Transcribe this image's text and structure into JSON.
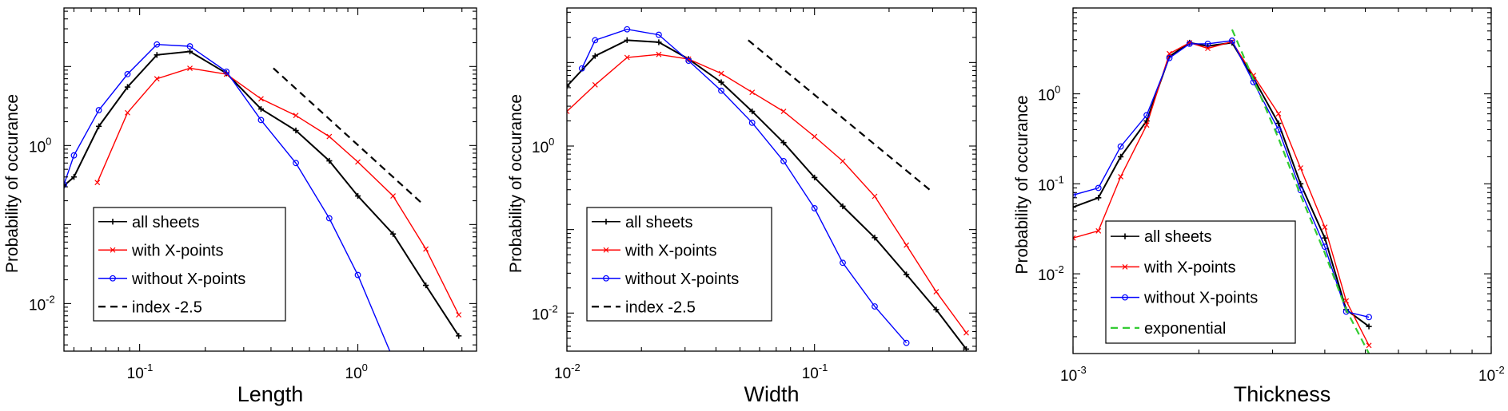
{
  "chart_data": [
    {
      "type": "line",
      "xscale": "log",
      "yscale": "log",
      "xlabel": "Length",
      "ylabel": "Probability of occurance",
      "xlim": [
        0.045,
        3.5
      ],
      "ylim": [
        0.0025,
        55
      ],
      "xticks": [
        {
          "value": 0.1,
          "base": "10",
          "exp": "-1"
        },
        {
          "value": 1,
          "base": "10",
          "exp": "0"
        }
      ],
      "yticks": [
        {
          "value": 0.01,
          "base": "10",
          "exp": "-2"
        },
        {
          "value": 1,
          "base": "10",
          "exp": "0"
        }
      ],
      "legend_position": "bottom-left",
      "series": [
        {
          "name": "all sheets",
          "color": "#000000",
          "marker": "plus",
          "x": [
            0.045,
            0.05,
            0.065,
            0.088,
            0.12,
            0.17,
            0.25,
            0.36,
            0.52,
            0.74,
            1.0,
            1.45,
            2.05,
            2.9
          ],
          "y": [
            0.31,
            0.4,
            1.75,
            5.5,
            14,
            15.5,
            8.2,
            2.9,
            1.55,
            0.64,
            0.23,
            0.076,
            0.017,
            0.0039
          ]
        },
        {
          "name": "with X-points",
          "color": "#ff0000",
          "marker": "x",
          "x": [
            0.064,
            0.088,
            0.12,
            0.17,
            0.25,
            0.36,
            0.52,
            0.74,
            1.0,
            1.45,
            2.05,
            2.9
          ],
          "y": [
            0.34,
            2.6,
            7.0,
            9.5,
            8.0,
            3.9,
            2.4,
            1.3,
            0.62,
            0.23,
            0.049,
            0.0072
          ]
        },
        {
          "name": "without X-points",
          "color": "#0000ff",
          "marker": "circle",
          "x": [
            0.045,
            0.05,
            0.065,
            0.088,
            0.12,
            0.17,
            0.25,
            0.36,
            0.52,
            0.74,
            1.0,
            1.45
          ],
          "y": [
            0.32,
            0.75,
            2.8,
            8.0,
            19,
            18,
            8.6,
            2.1,
            0.6,
            0.12,
            0.023,
            0.002
          ]
        },
        {
          "name": "index -2.5",
          "color": "#000000",
          "marker": "none",
          "dashed": true,
          "x": [
            0.41,
            1.95
          ],
          "y": [
            9.5,
            0.19
          ]
        }
      ]
    },
    {
      "type": "line",
      "xscale": "log",
      "yscale": "log",
      "xlabel": "Width",
      "ylabel": "Probability of occurance",
      "xlim": [
        0.01,
        0.45
      ],
      "ylim": [
        0.0035,
        45
      ],
      "xticks": [
        {
          "value": 0.01,
          "base": "10",
          "exp": "-2"
        },
        {
          "value": 0.1,
          "base": "10",
          "exp": "-1"
        }
      ],
      "yticks": [
        {
          "value": 0.01,
          "base": "10",
          "exp": "-2"
        },
        {
          "value": 1,
          "base": "10",
          "exp": "0"
        }
      ],
      "legend_position": "bottom-left",
      "series": [
        {
          "name": "all sheets",
          "color": "#000000",
          "marker": "plus",
          "x": [
            0.01,
            0.013,
            0.0175,
            0.0235,
            0.031,
            0.042,
            0.056,
            0.075,
            0.1,
            0.13,
            0.175,
            0.235,
            0.31,
            0.41
          ],
          "y": [
            5.2,
            12,
            18.5,
            17.5,
            11,
            5.8,
            2.6,
            1.1,
            0.42,
            0.19,
            0.08,
            0.029,
            0.011,
            0.0037
          ]
        },
        {
          "name": "with X-points",
          "color": "#ff0000",
          "marker": "x",
          "x": [
            0.01,
            0.013,
            0.0175,
            0.0235,
            0.031,
            0.042,
            0.056,
            0.075,
            0.1,
            0.13,
            0.175,
            0.235,
            0.31,
            0.41
          ],
          "y": [
            2.6,
            5.4,
            11.5,
            12.5,
            11,
            7.4,
            4.4,
            2.6,
            1.3,
            0.66,
            0.25,
            0.065,
            0.018,
            0.0058
          ]
        },
        {
          "name": "without X-points",
          "color": "#0000ff",
          "marker": "circle",
          "x": [
            0.0115,
            0.013,
            0.0175,
            0.0235,
            0.031,
            0.042,
            0.056,
            0.075,
            0.1,
            0.13,
            0.175,
            0.235
          ],
          "y": [
            8.5,
            18.5,
            25,
            21.5,
            10.5,
            4.6,
            1.9,
            0.66,
            0.18,
            0.04,
            0.012,
            0.0044
          ]
        },
        {
          "name": "index -2.5",
          "color": "#000000",
          "marker": "none",
          "dashed": true,
          "x": [
            0.054,
            0.3
          ],
          "y": [
            18.5,
            0.28
          ]
        }
      ]
    },
    {
      "type": "line",
      "xscale": "log",
      "yscale": "log",
      "xlabel": "Thickness",
      "ylabel": "Probability of occurance",
      "xlim": [
        0.001,
        0.01
      ],
      "ylim": [
        0.0013,
        9
      ],
      "xticks": [
        {
          "value": 0.001,
          "base": "10",
          "exp": "-3"
        },
        {
          "value": 0.01,
          "base": "10",
          "exp": "-2"
        }
      ],
      "yticks": [
        {
          "value": 0.01,
          "base": "10",
          "exp": "-2"
        },
        {
          "value": 0.1,
          "base": "10",
          "exp": "-1"
        },
        {
          "value": 1,
          "base": "10",
          "exp": "0"
        }
      ],
      "legend_position": "bottom-left",
      "series": [
        {
          "name": "all sheets",
          "color": "#000000",
          "marker": "plus",
          "x": [
            0.001,
            0.00115,
            0.0013,
            0.0015,
            0.0017,
            0.0019,
            0.0021,
            0.0024,
            0.0027,
            0.0031,
            0.0035,
            0.004,
            0.0045,
            0.0051
          ],
          "y": [
            0.055,
            0.07,
            0.2,
            0.5,
            2.6,
            3.7,
            3.4,
            3.7,
            1.5,
            0.47,
            0.1,
            0.025,
            0.004,
            0.0026
          ]
        },
        {
          "name": "with X-points",
          "color": "#ff0000",
          "marker": "x",
          "x": [
            0.001,
            0.00115,
            0.0013,
            0.0015,
            0.0017,
            0.0019,
            0.0021,
            0.0024,
            0.0027,
            0.0031,
            0.0035,
            0.004,
            0.0045,
            0.0051
          ],
          "y": [
            0.025,
            0.03,
            0.12,
            0.45,
            2.8,
            3.7,
            3.2,
            3.8,
            1.6,
            0.6,
            0.15,
            0.033,
            0.005,
            0.0016
          ]
        },
        {
          "name": "without X-points",
          "color": "#0000ff",
          "marker": "circle",
          "x": [
            0.001,
            0.00115,
            0.0013,
            0.0015,
            0.0017,
            0.0019,
            0.0021,
            0.0024,
            0.0027,
            0.0031,
            0.0035,
            0.004,
            0.0045,
            0.0051
          ],
          "y": [
            0.075,
            0.09,
            0.26,
            0.58,
            2.5,
            3.6,
            3.6,
            3.9,
            1.35,
            0.4,
            0.085,
            0.02,
            0.0038,
            0.0033
          ]
        },
        {
          "name": "exponential",
          "color": "#33cc33",
          "marker": "none",
          "dashed": true,
          "x": [
            0.0024,
            0.0027,
            0.0031,
            0.0035,
            0.004,
            0.0045,
            0.0051
          ],
          "y": [
            5.2,
            1.45,
            0.32,
            0.075,
            0.017,
            0.004,
            0.0013
          ]
        }
      ]
    }
  ]
}
